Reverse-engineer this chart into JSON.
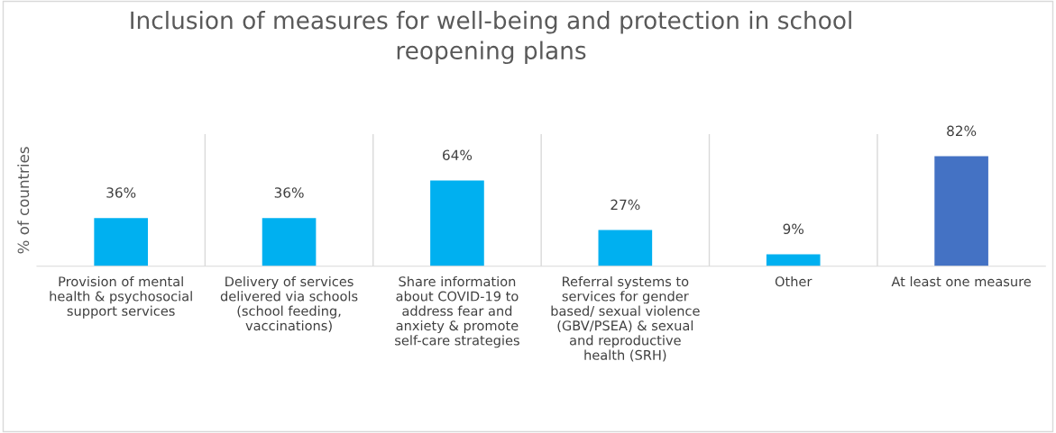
{
  "chart_data": {
    "type": "bar",
    "title": "Inclusion of measures for well-being and protection in school reopening plans",
    "ylabel": "% of countries",
    "categories": [
      "Provision of mental health & psychosocial support services",
      "Delivery of services delivered via schools (school feeding, vaccinations)",
      "Share information about COVID-19 to address fear and anxiety & promote self-care strategies",
      "Referral systems to services for gender based/ sexual violence (GBV/PSEA) & sexual and reproductive health (SRH)",
      "Other",
      "At least one measure"
    ],
    "values": [
      36,
      36,
      64,
      27,
      9,
      82
    ],
    "colors": [
      "#00b0f0",
      "#00b0f0",
      "#00b0f0",
      "#00b0f0",
      "#00b0f0",
      "#4472c4"
    ],
    "value_labels": [
      "36%",
      "36%",
      "64%",
      "27%",
      "9%",
      "82%"
    ],
    "grid": "x",
    "legend": false
  }
}
